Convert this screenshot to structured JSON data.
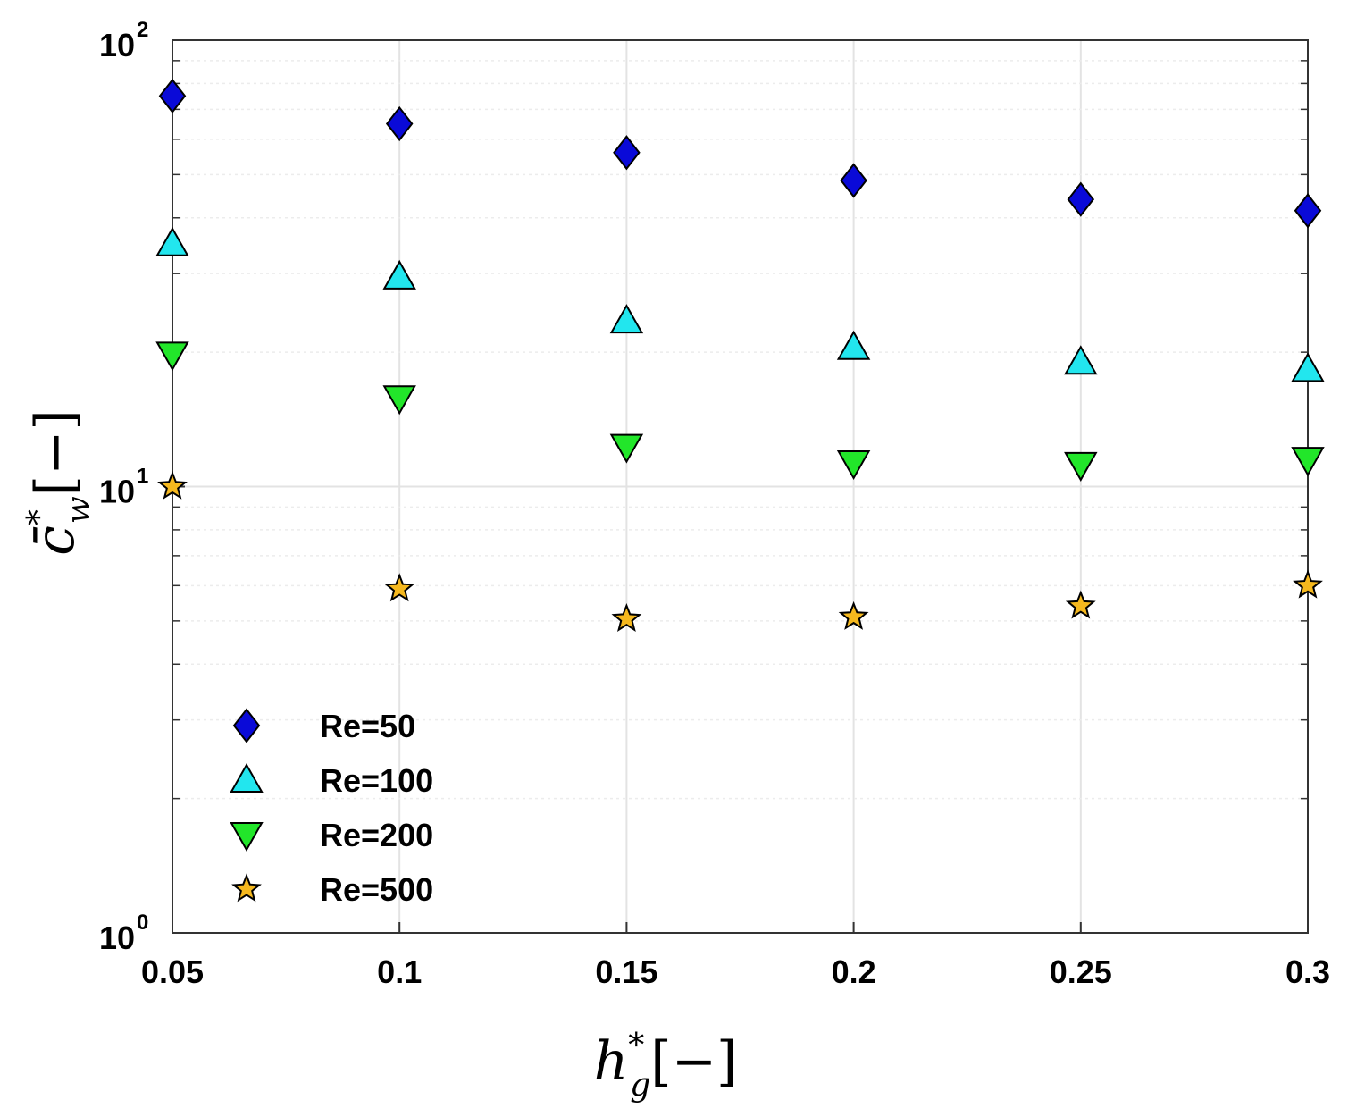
{
  "chart_data": {
    "type": "scatter",
    "title": "",
    "xlabel": {
      "main": "h",
      "sup": "*",
      "sub": "g",
      "unit": "[−]"
    },
    "ylabel": {
      "main": "c̄",
      "sup": "*",
      "sub": "w",
      "unit": "[−]"
    },
    "x": [
      0.05,
      0.1,
      0.15,
      0.2,
      0.25,
      0.3
    ],
    "xticks": [
      "0.05",
      "0.1",
      "0.15",
      "0.2",
      "0.25",
      "0.3"
    ],
    "xlim": [
      0.05,
      0.3
    ],
    "yscale": "log",
    "ylim": [
      1,
      100
    ],
    "yticks": [
      {
        "base": "10",
        "exp": "0"
      },
      {
        "base": "10",
        "exp": "1"
      },
      {
        "base": "10",
        "exp": "2"
      }
    ],
    "grid": true,
    "legend_position": "bottom-left",
    "series": [
      {
        "name": "Re=50",
        "marker": "diamond",
        "color": "#0a0ad8",
        "values": [
          75,
          65,
          56,
          48.5,
          44,
          41.5
        ]
      },
      {
        "name": "Re=100",
        "marker": "triangle-up",
        "color": "#22e6ee",
        "values": [
          35,
          29.5,
          23.5,
          20.5,
          19,
          18.3
        ]
      },
      {
        "name": "Re=200",
        "marker": "triangle-down",
        "color": "#22e62a",
        "values": [
          19.8,
          15.8,
          12.3,
          11.3,
          11.2,
          11.5
        ]
      },
      {
        "name": "Re=500",
        "marker": "star",
        "color": "#f5b81e",
        "values": [
          10,
          5.9,
          5.05,
          5.1,
          5.4,
          6.0
        ]
      }
    ]
  }
}
